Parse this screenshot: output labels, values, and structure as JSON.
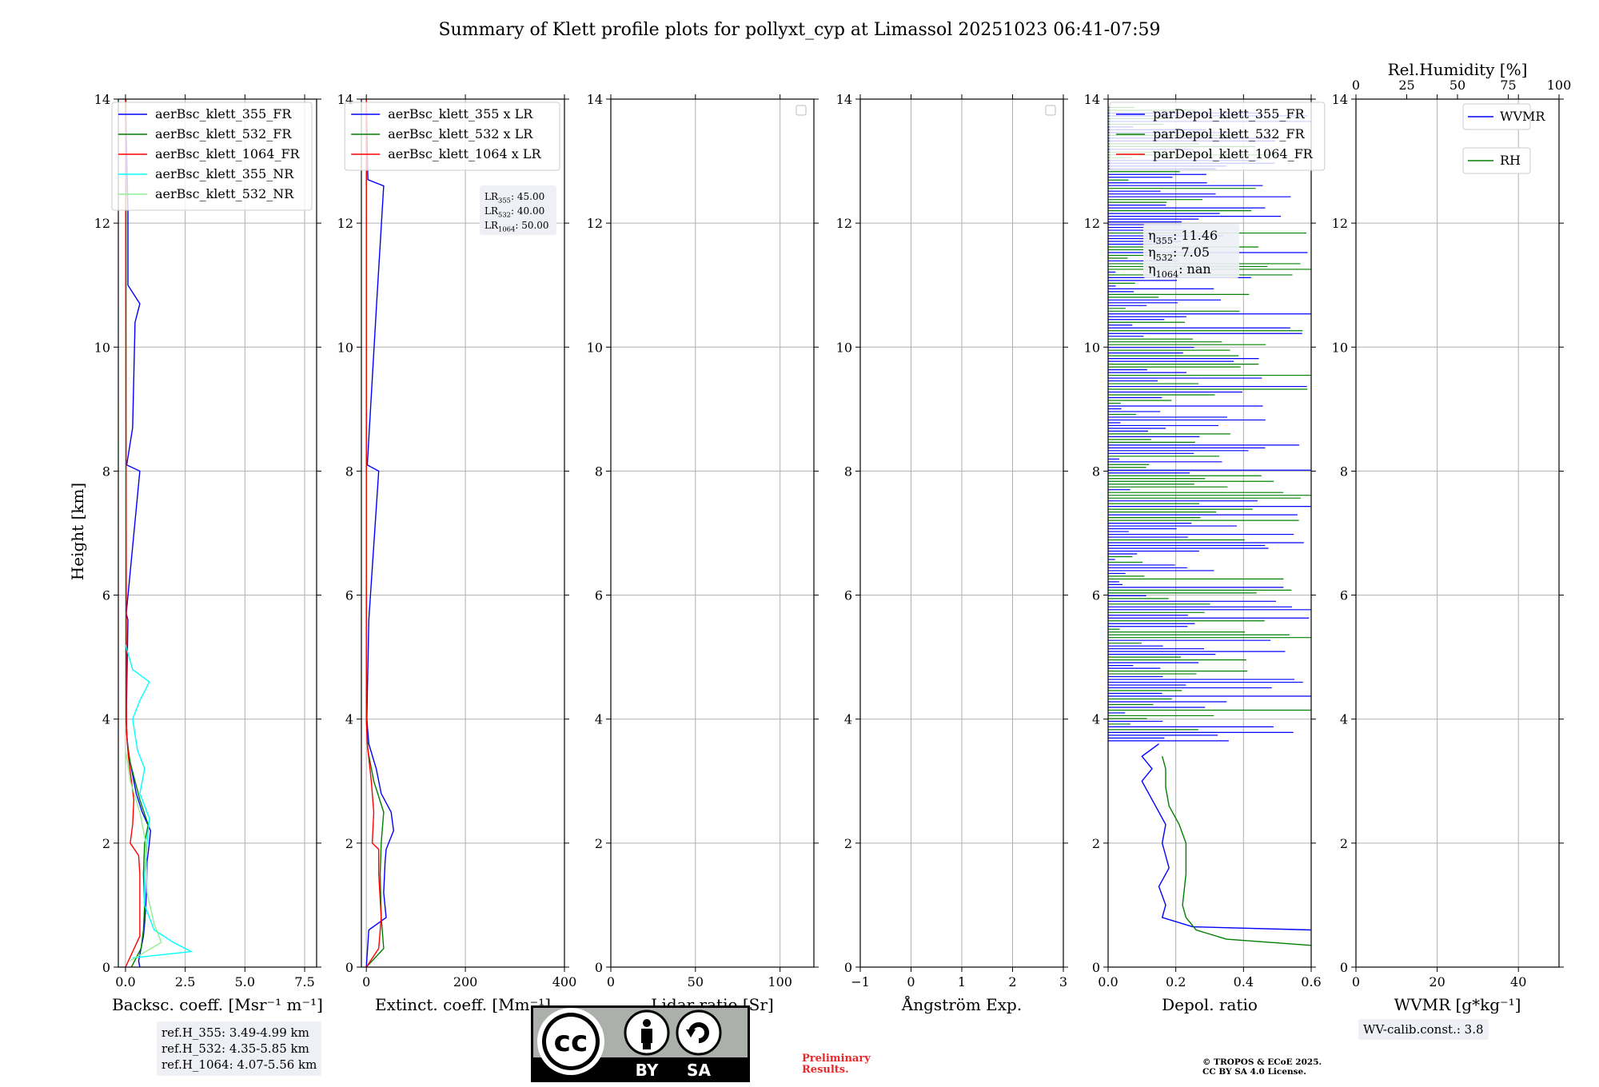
{
  "figure": {
    "title": "Summary of Klett profile plots for pollyxt_cyp at Limassol 20251023 06:41-07:59",
    "ylabel": "Height [km]",
    "ref_heights": [
      "ref.H_355: 3.49-4.99 km",
      "ref.H_532: 4.35-5.85 km",
      "ref.H_1064: 4.07-5.56 km"
    ],
    "wv_calib": "WV-calib.const.: 3.8",
    "preliminary": [
      "Preliminary",
      "Results."
    ],
    "copyright": [
      "© TROPOS & ECoE 2025.",
      "CC BY SA 4.0 License."
    ],
    "license_badge": {
      "by": "BY",
      "sa": "SA",
      "icon": "cc-by-sa-icon"
    },
    "colors": {
      "blue": "#0000ff",
      "green": "#008000",
      "red": "#ff0000",
      "cyan": "#00ffff",
      "lightgreen": "#90ee90"
    }
  },
  "chart_data": [
    {
      "id": "bsc",
      "type": "line",
      "xlabel": "Backsc. coeff. [Msr⁻¹ m⁻¹]",
      "ylabel": "Height [km]",
      "xlim": [
        -0.3,
        8.0
      ],
      "ylim": [
        0,
        14
      ],
      "xticks": [
        0,
        2.5,
        5.0,
        7.5
      ],
      "xticklabels": [
        "0.0",
        "2.5",
        "5.0",
        "7.5"
      ],
      "yticks": [
        0,
        2,
        4,
        6,
        8,
        10,
        12,
        14
      ],
      "grid": true,
      "legend_loc": "top-right",
      "series": [
        {
          "name": "aerBsc_klett_355_FR",
          "color": "#0000ff"
        },
        {
          "name": "aerBsc_klett_532_FR",
          "color": "#008000"
        },
        {
          "name": "aerBsc_klett_1064_FR",
          "color": "#ff0000"
        },
        {
          "name": "aerBsc_klett_355_NR",
          "color": "#00ffff"
        },
        {
          "name": "aerBsc_klett_532_NR",
          "color": "#90ee90"
        }
      ],
      "profiles": {
        "aerBsc_klett_355_FR": [
          [
            0,
            0.6
          ],
          [
            0.1,
            0.55
          ],
          [
            0.3,
            0.65
          ],
          [
            0.5,
            0.75
          ],
          [
            0.7,
            0.8
          ],
          [
            1.0,
            0.85
          ],
          [
            1.3,
            0.88
          ],
          [
            1.7,
            0.9
          ],
          [
            2.0,
            1.0
          ],
          [
            2.2,
            1.05
          ],
          [
            2.5,
            0.7
          ],
          [
            2.8,
            0.45
          ],
          [
            3.1,
            0.3
          ],
          [
            3.4,
            0.15
          ],
          [
            3.7,
            0.06
          ],
          [
            4.0,
            0.03
          ],
          [
            5.6,
            0.1
          ],
          [
            5.7,
            0.03
          ],
          [
            8.0,
            0.6
          ],
          [
            8.1,
            0.05
          ],
          [
            8.7,
            0.3
          ],
          [
            10.4,
            0.4
          ],
          [
            10.7,
            0.6
          ],
          [
            11.0,
            0.1
          ],
          [
            12.2,
            0.1
          ],
          [
            14,
            0.0
          ]
        ],
        "aerBsc_klett_532_FR": [
          [
            0,
            0.25
          ],
          [
            0.3,
            0.65
          ],
          [
            0.6,
            0.75
          ],
          [
            1.0,
            0.8
          ],
          [
            1.5,
            0.75
          ],
          [
            2.0,
            0.8
          ],
          [
            2.3,
            0.95
          ],
          [
            2.7,
            0.6
          ],
          [
            3.0,
            0.4
          ],
          [
            3.3,
            0.2
          ],
          [
            3.6,
            0.08
          ],
          [
            4.0,
            0.02
          ],
          [
            14,
            0.02
          ]
        ],
        "aerBsc_klett_1064_FR": [
          [
            0,
            0.0
          ],
          [
            0.5,
            0.6
          ],
          [
            1.0,
            0.6
          ],
          [
            1.5,
            0.6
          ],
          [
            1.8,
            0.55
          ],
          [
            2.0,
            0.2
          ],
          [
            2.3,
            0.3
          ],
          [
            2.7,
            0.35
          ],
          [
            3.0,
            0.25
          ],
          [
            3.4,
            0.12
          ],
          [
            3.8,
            0.04
          ],
          [
            14,
            0.0
          ]
        ],
        "aerBsc_klett_355_NR": [
          [
            0.15,
            0.3
          ],
          [
            0.25,
            2.75
          ],
          [
            0.4,
            2.0
          ],
          [
            0.6,
            1.2
          ],
          [
            1.0,
            0.8
          ],
          [
            1.5,
            0.8
          ],
          [
            2.0,
            0.9
          ],
          [
            2.4,
            1.0
          ],
          [
            2.8,
            0.6
          ],
          [
            3.2,
            0.8
          ],
          [
            3.5,
            0.5
          ],
          [
            4.0,
            0.3
          ],
          [
            4.3,
            0.6
          ],
          [
            4.6,
            1.0
          ],
          [
            4.8,
            0.3
          ],
          [
            5.2,
            0.0
          ]
        ],
        "aerBsc_klett_532_NR": [
          [
            0.1,
            0.2
          ],
          [
            0.4,
            1.5
          ],
          [
            0.7,
            1.2
          ],
          [
            1.2,
            0.9
          ],
          [
            2.0,
            0.85
          ],
          [
            2.5,
            0.6
          ],
          [
            3.0,
            0.2
          ],
          [
            3.5,
            0.0
          ]
        ]
      }
    },
    {
      "id": "ext",
      "type": "line",
      "xlabel": "Extinct. coeff. [Mm⁻¹]",
      "xlim": [
        -10,
        400
      ],
      "ylim": [
        0,
        14
      ],
      "xticks": [
        0,
        200,
        400
      ],
      "xticklabels": [
        "0",
        "200",
        "400"
      ],
      "yticks": [
        0,
        2,
        4,
        6,
        8,
        10,
        12,
        14
      ],
      "grid": true,
      "legend_loc": "top-right",
      "series": [
        {
          "name": "aerBsc_klett_355 x LR",
          "color": "#0000ff"
        },
        {
          "name": "aerBsc_klett_532 x LR",
          "color": "#008000"
        },
        {
          "name": "aerBsc_klett_1064 x LR",
          "color": "#ff0000"
        }
      ],
      "lidar_ratios": [
        {
          "label": "LR",
          "sub": "355",
          "value": ": 45.00"
        },
        {
          "label": "LR",
          "sub": "532",
          "value": ": 40.00"
        },
        {
          "label": "LR",
          "sub": "1064",
          "value": ": 50.00"
        }
      ],
      "profiles": {
        "aerBsc_klett_355 x LR": [
          [
            0,
            0
          ],
          [
            0.6,
            5
          ],
          [
            0.8,
            40
          ],
          [
            1.2,
            35
          ],
          [
            1.7,
            38
          ],
          [
            1.9,
            40
          ],
          [
            2.2,
            55
          ],
          [
            2.5,
            50
          ],
          [
            2.8,
            30
          ],
          [
            3.2,
            20
          ],
          [
            3.6,
            5
          ],
          [
            4.0,
            1
          ],
          [
            5.6,
            5
          ],
          [
            8.0,
            25
          ],
          [
            8.1,
            2
          ],
          [
            10.6,
            20
          ],
          [
            12.6,
            35
          ],
          [
            12.7,
            3
          ],
          [
            14,
            0
          ]
        ],
        "aerBsc_klett_532 x LR": [
          [
            0,
            0
          ],
          [
            0.3,
            35
          ],
          [
            0.8,
            30
          ],
          [
            1.5,
            28
          ],
          [
            2.0,
            30
          ],
          [
            2.5,
            35
          ],
          [
            3.0,
            15
          ],
          [
            3.5,
            3
          ],
          [
            4.0,
            0
          ],
          [
            14,
            0
          ]
        ],
        "aerBsc_klett_1064 x LR": [
          [
            0,
            0
          ],
          [
            0.3,
            25
          ],
          [
            0.8,
            30
          ],
          [
            1.5,
            25
          ],
          [
            1.9,
            25
          ],
          [
            2.0,
            12
          ],
          [
            2.5,
            15
          ],
          [
            3.0,
            10
          ],
          [
            3.6,
            2
          ],
          [
            4,
            0
          ],
          [
            14,
            0
          ]
        ]
      }
    },
    {
      "id": "lr",
      "type": "line",
      "xlabel": "Lidar ratio [Sr]",
      "xlim": [
        0,
        120
      ],
      "ylim": [
        0,
        14
      ],
      "xticks": [
        0,
        50,
        100
      ],
      "xticklabels": [
        "0",
        "50",
        "100"
      ],
      "yticks": [
        0,
        2,
        4,
        6,
        8,
        10,
        12,
        14
      ],
      "grid": true,
      "legend_loc": "top-right",
      "series": []
    },
    {
      "id": "ae",
      "type": "line",
      "xlabel": "Ångström Exp.",
      "xlim": [
        -1,
        3
      ],
      "ylim": [
        0,
        14
      ],
      "xticks": [
        -1,
        0,
        1,
        2,
        3
      ],
      "xticklabels": [
        "−1",
        "0",
        "1",
        "2",
        "3"
      ],
      "yticks": [
        0,
        2,
        4,
        6,
        8,
        10,
        12,
        14
      ],
      "grid": true,
      "legend_loc": "top-right",
      "series": []
    },
    {
      "id": "depol",
      "type": "line",
      "xlabel": "Depol. ratio",
      "xlim": [
        0,
        0.6
      ],
      "ylim": [
        0,
        14
      ],
      "xticks": [
        0,
        0.2,
        0.4,
        0.6
      ],
      "xticklabels": [
        "0.0",
        "0.2",
        "0.4",
        "0.6"
      ],
      "yticks": [
        0,
        2,
        4,
        6,
        8,
        10,
        12,
        14
      ],
      "grid": true,
      "legend_loc": "top-left",
      "series": [
        {
          "name": "parDepol_klett_355_FR",
          "color": "#0000ff"
        },
        {
          "name": "parDepol_klett_532_FR",
          "color": "#008000"
        },
        {
          "name": "parDepol_klett_1064_FR",
          "color": "#ff0000"
        }
      ],
      "eta": [
        {
          "label": "η",
          "sub": "355",
          "value": ": 11.46"
        },
        {
          "label": "η",
          "sub": "532",
          "value": ": 7.05"
        },
        {
          "label": "η",
          "sub": "1064",
          "value": ": nan"
        }
      ],
      "profiles": {
        "parDepol_klett_355_FR": [
          [
            0.6,
            0.6
          ],
          [
            0.65,
            0.25
          ],
          [
            0.8,
            0.16
          ],
          [
            1.0,
            0.17
          ],
          [
            1.3,
            0.15
          ],
          [
            1.6,
            0.18
          ],
          [
            2.0,
            0.16
          ],
          [
            2.3,
            0.17
          ],
          [
            2.6,
            0.14
          ],
          [
            2.8,
            0.12
          ],
          [
            3.0,
            0.1
          ],
          [
            3.2,
            0.13
          ],
          [
            3.4,
            0.1
          ],
          [
            3.6,
            0.15
          ]
        ],
        "parDepol_klett_532_FR": [
          [
            0.35,
            0.6
          ],
          [
            0.45,
            0.35
          ],
          [
            0.6,
            0.26
          ],
          [
            0.8,
            0.23
          ],
          [
            1.0,
            0.22
          ],
          [
            1.5,
            0.23
          ],
          [
            2.0,
            0.23
          ],
          [
            2.3,
            0.21
          ],
          [
            2.6,
            0.18
          ],
          [
            2.9,
            0.17
          ],
          [
            3.2,
            0.17
          ],
          [
            3.4,
            0.16
          ]
        ]
      },
      "upper_noise": "fluctuating horizontal spikes 0–0.6 between 3.6 and 14 km"
    },
    {
      "id": "wv",
      "type": "line",
      "xlabel": "WVMR [g*kg⁻¹]",
      "top_xlabel": "Rel.Humidity [%]",
      "xlim": [
        0,
        50
      ],
      "ylim": [
        0,
        14
      ],
      "xticks": [
        0,
        20,
        40
      ],
      "xticklabels": [
        "0",
        "20",
        "40"
      ],
      "top_xticks": [
        0,
        25,
        50,
        75,
        100
      ],
      "top_xticklabels": [
        "0",
        "25",
        "50",
        "75",
        "100"
      ],
      "yticks": [
        0,
        2,
        4,
        6,
        8,
        10,
        12,
        14
      ],
      "grid": true,
      "legend_loc": "top-right",
      "series": [
        {
          "name": "WVMR",
          "color": "#0000ff"
        },
        {
          "name": "RH",
          "color": "#008000"
        }
      ]
    }
  ]
}
